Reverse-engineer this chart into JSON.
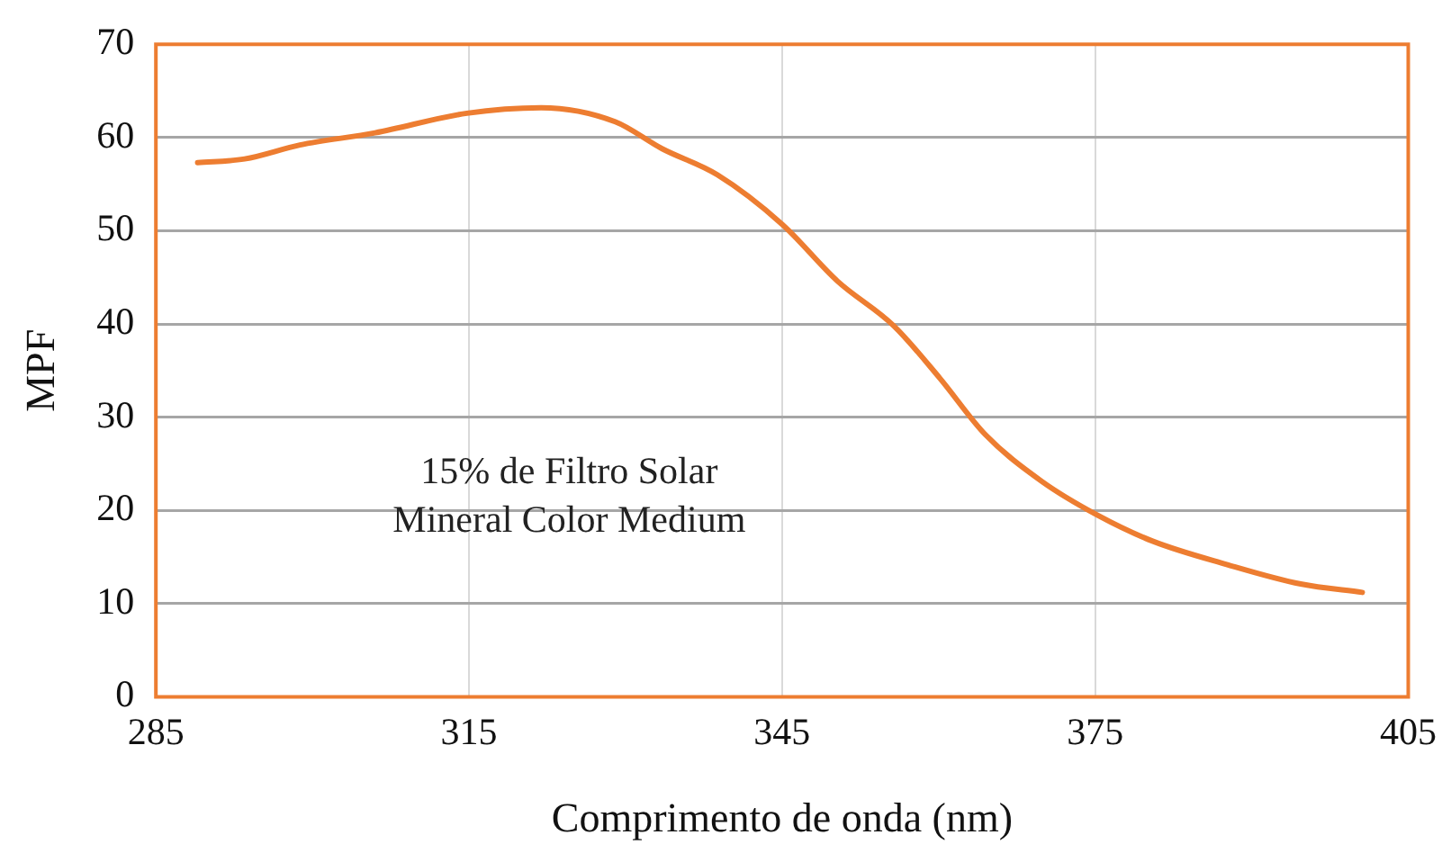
{
  "chart_data": {
    "type": "line",
    "xlabel": "Comprimento de onda (nm)",
    "ylabel": "MPF",
    "annotations": [
      "15% de Filtro Solar\nMineral Color Medium"
    ],
    "x": [
      289,
      293.5,
      298.8,
      306,
      314.8,
      321.9,
      329,
      333.5,
      338.8,
      345,
      350.3,
      355.7,
      360.1,
      364.5,
      369.9,
      375.2,
      380.5,
      387.6,
      394.7,
      400.6
    ],
    "series": [
      {
        "color": "#ed7d31",
        "values": [
          57.3,
          57.7,
          59.2,
          60.5,
          62.6,
          63.2,
          61.7,
          58.8,
          56,
          50.7,
          44.6,
          39.8,
          34.2,
          28.1,
          23.1,
          19.5,
          16.7,
          14.2,
          12.1,
          11.2
        ]
      }
    ],
    "xlim": [
      285,
      405
    ],
    "xticks": [
      285,
      315,
      345,
      375,
      405
    ],
    "ylim": [
      0,
      70
    ],
    "yticks": [
      0,
      10,
      20,
      30,
      40,
      50,
      60,
      70
    ],
    "grid": true,
    "legend": false,
    "marker": "none",
    "line_style": "solid"
  }
}
